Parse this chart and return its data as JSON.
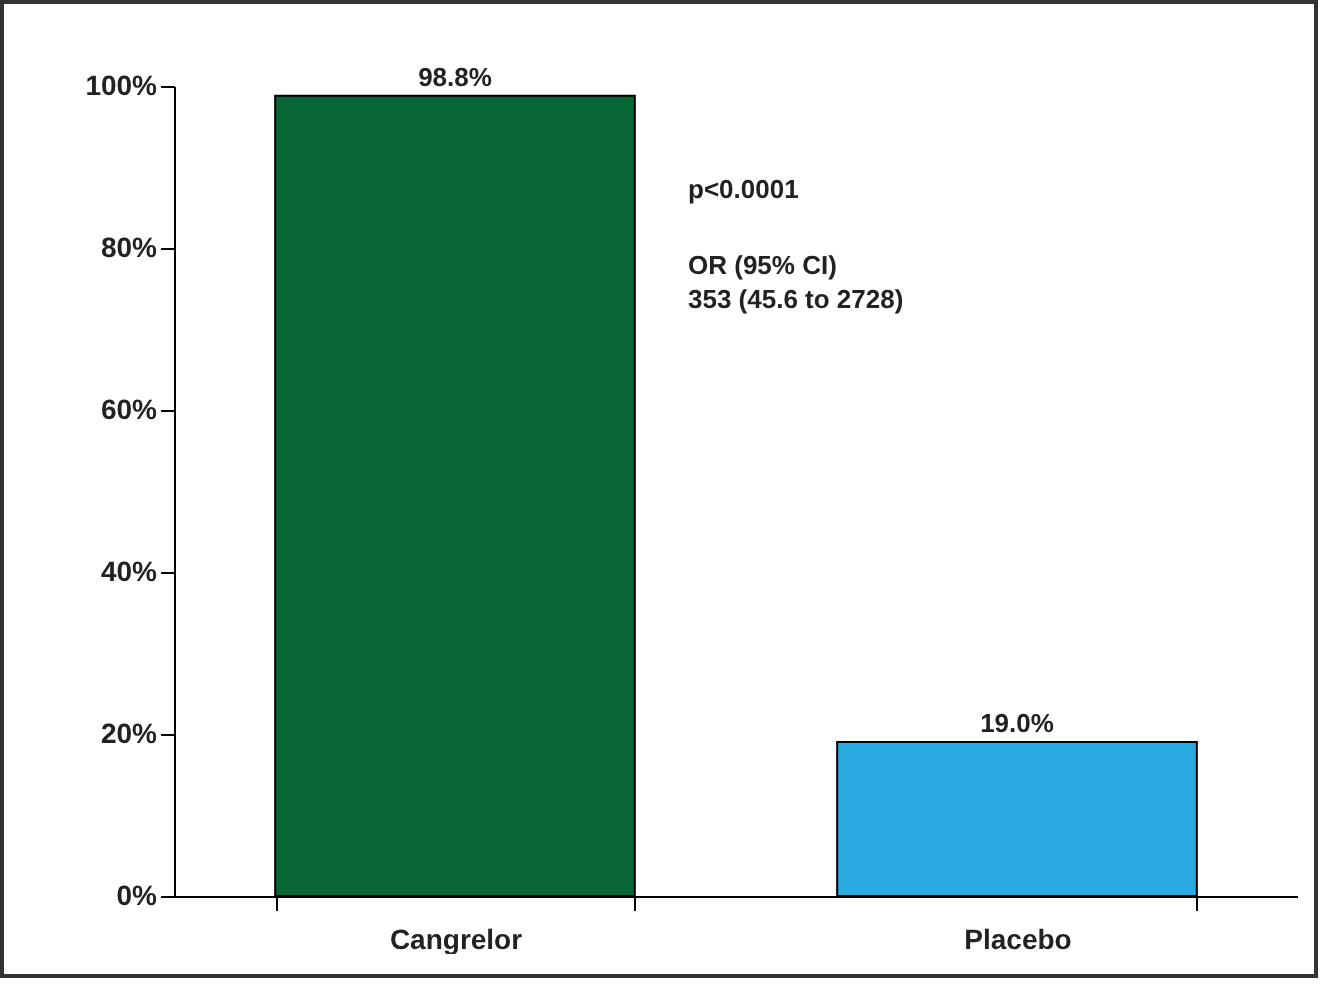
{
  "chart_data": {
    "type": "bar",
    "categories": [
      "Cangrelor",
      "Placebo"
    ],
    "values": [
      98.8,
      19.0
    ],
    "colors": [
      "#076633",
      "#29abe2"
    ],
    "value_labels": [
      "98.8%",
      "19.0%"
    ],
    "ylim": [
      0,
      100
    ],
    "yticks": [
      {
        "value": 0,
        "label": "0%"
      },
      {
        "value": 20,
        "label": "20%"
      },
      {
        "value": 40,
        "label": "40%"
      },
      {
        "value": 60,
        "label": "60%"
      },
      {
        "value": 80,
        "label": "80%"
      },
      {
        "value": 100,
        "label": "100%"
      }
    ],
    "annotations": [
      "p<0.0001",
      "OR (95% CI)",
      "353 (45.6 to 2728)"
    ],
    "grid": false
  }
}
